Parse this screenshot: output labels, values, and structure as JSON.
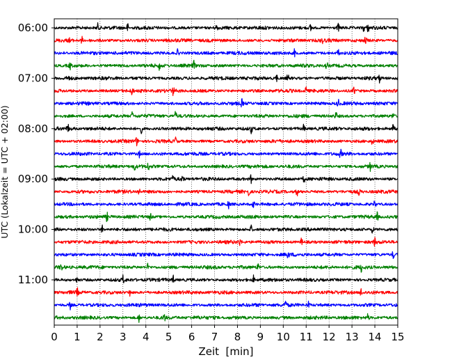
{
  "chart_data": {
    "type": "line",
    "title": "",
    "xlabel": "Zeit  [min]",
    "ylabel": "UTC (Lokalzeit = UTC + 02:00)",
    "xlim": [
      0,
      15
    ],
    "x_ticks": [
      "0",
      "1",
      "2",
      "3",
      "4",
      "5",
      "6",
      "7",
      "8",
      "9",
      "10",
      "11",
      "12",
      "13",
      "14",
      "15"
    ],
    "y_ticks": [
      "06:00",
      "07:00",
      "08:00",
      "09:00",
      "10:00",
      "11:00"
    ],
    "grid": "vertical dotted lines at each minute",
    "legend": "none",
    "trace_interval_minutes": 15,
    "trace_colors": [
      "#000000",
      "#ff0000",
      "#0000ff",
      "#008000"
    ],
    "traces": [
      {
        "start": "06:00",
        "color": "#000000",
        "spikes_min": [
          1.9,
          3.2,
          7.1,
          11.2,
          12.4,
          13.5,
          13.7
        ]
      },
      {
        "start": "06:15",
        "color": "#ff0000",
        "spikes_min": [
          0.7,
          1.2,
          11.7,
          13.6
        ]
      },
      {
        "start": "06:30",
        "color": "#0000ff",
        "spikes_min": [
          5.4,
          10.5,
          12.4
        ]
      },
      {
        "start": "06:45",
        "color": "#008000",
        "spikes_min": [
          0.7,
          4.6,
          6.1,
          11.9
        ]
      },
      {
        "start": "07:00",
        "color": "#000000",
        "spikes_min": [
          0.6,
          9.7,
          10.2,
          14.2
        ]
      },
      {
        "start": "07:15",
        "color": "#ff0000",
        "spikes_min": [
          3.4,
          5.2,
          11.0,
          13.1
        ]
      },
      {
        "start": "07:30",
        "color": "#0000ff",
        "spikes_min": [
          8.2,
          12.4
        ]
      },
      {
        "start": "07:45",
        "color": "#008000",
        "spikes_min": [
          3.4,
          5.3,
          12.3,
          14.8
        ]
      },
      {
        "start": "08:00",
        "color": "#000000",
        "spikes_min": [
          0.6,
          3.8,
          8.6,
          10.9,
          14.8
        ]
      },
      {
        "start": "08:15",
        "color": "#ff0000",
        "spikes_min": [
          3.6,
          5.3,
          13.9
        ]
      },
      {
        "start": "08:30",
        "color": "#0000ff",
        "spikes_min": [
          3.7,
          12.5
        ]
      },
      {
        "start": "08:45",
        "color": "#008000",
        "spikes_min": [
          3.5,
          4.1,
          13.8
        ]
      },
      {
        "start": "09:00",
        "color": "#000000",
        "spikes_min": [
          5.2,
          5.6,
          8.6,
          10.9
        ]
      },
      {
        "start": "09:15",
        "color": "#ff0000",
        "spikes_min": [
          3.7,
          8.5,
          10.6,
          13.3
        ]
      },
      {
        "start": "09:30",
        "color": "#0000ff",
        "spikes_min": [
          7.6,
          8.7,
          14.0
        ]
      },
      {
        "start": "09:45",
        "color": "#008000",
        "spikes_min": [
          2.3,
          4.2,
          14.1
        ]
      },
      {
        "start": "10:00",
        "color": "#000000",
        "spikes_min": [
          2.1,
          8.6,
          12.2,
          13.9
        ]
      },
      {
        "start": "10:15",
        "color": "#ff0000",
        "spikes_min": [
          8.1,
          10.8,
          14.0
        ]
      },
      {
        "start": "10:30",
        "color": "#0000ff",
        "spikes_min": [
          10.2,
          14.8
        ]
      },
      {
        "start": "10:45",
        "color": "#008000",
        "spikes_min": [
          0.3,
          4.1,
          8.9,
          13.4
        ]
      },
      {
        "start": "11:00",
        "color": "#000000",
        "spikes_min": [
          1.0,
          3.0,
          5.2,
          8.7
        ]
      },
      {
        "start": "11:15",
        "color": "#ff0000",
        "spikes_min": [
          1.0,
          3.3,
          13.4
        ]
      },
      {
        "start": "11:30",
        "color": "#0000ff",
        "spikes_min": [
          0.7,
          10.1,
          11.1
        ]
      },
      {
        "start": "11:45",
        "color": "#008000",
        "spikes_min": [
          3.7,
          4.8,
          13.7
        ]
      }
    ]
  }
}
